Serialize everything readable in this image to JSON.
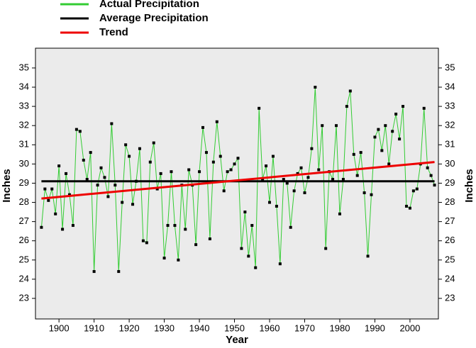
{
  "chart_data": {
    "type": "line",
    "x_label": "Year",
    "y_label": "Inches",
    "xlim": [
      1893.3,
      2008.1
    ],
    "ylim": [
      21.93,
      36.03
    ],
    "xticks": [
      1900,
      1910,
      1920,
      1930,
      1940,
      1950,
      1960,
      1970,
      1980,
      1990,
      2000
    ],
    "yticks": [
      23,
      24,
      25,
      26,
      27,
      28,
      29,
      30,
      31,
      32,
      33,
      34,
      35
    ],
    "background": "#ebebeb",
    "legend": "top-left",
    "series": [
      {
        "name": "Actual Precipitation",
        "color": "#33cc33",
        "markers": true,
        "x": [
          1895,
          1896,
          1897,
          1898,
          1899,
          1900,
          1901,
          1902,
          1903,
          1904,
          1905,
          1906,
          1907,
          1908,
          1909,
          1910,
          1911,
          1912,
          1913,
          1914,
          1915,
          1916,
          1917,
          1918,
          1919,
          1920,
          1921,
          1922,
          1923,
          1924,
          1925,
          1926,
          1927,
          1928,
          1929,
          1930,
          1931,
          1932,
          1933,
          1934,
          1935,
          1936,
          1937,
          1938,
          1939,
          1940,
          1941,
          1942,
          1943,
          1944,
          1945,
          1946,
          1947,
          1948,
          1949,
          1950,
          1951,
          1952,
          1953,
          1954,
          1955,
          1956,
          1957,
          1958,
          1959,
          1960,
          1961,
          1962,
          1963,
          1964,
          1965,
          1966,
          1967,
          1968,
          1969,
          1970,
          1971,
          1972,
          1973,
          1974,
          1975,
          1976,
          1977,
          1978,
          1979,
          1980,
          1981,
          1982,
          1983,
          1984,
          1985,
          1986,
          1987,
          1988,
          1989,
          1990,
          1991,
          1992,
          1993,
          1994,
          1995,
          1996,
          1997,
          1998,
          1999,
          2000,
          2001,
          2002,
          2003,
          2004,
          2005,
          2006,
          2007
        ],
        "values": [
          26.7,
          28.7,
          28.1,
          28.7,
          27.4,
          29.9,
          26.6,
          29.5,
          28.4,
          26.8,
          31.8,
          31.7,
          30.2,
          29.2,
          30.6,
          24.4,
          28.9,
          29.8,
          29.3,
          28.3,
          32.1,
          28.9,
          24.4,
          28.0,
          31.0,
          30.4,
          27.9,
          29.1,
          30.8,
          26.0,
          25.9,
          30.1,
          31.1,
          28.7,
          29.5,
          25.1,
          26.8,
          29.6,
          26.8,
          25.0,
          28.9,
          26.6,
          29.7,
          28.9,
          25.8,
          29.6,
          31.9,
          30.6,
          26.1,
          30.1,
          32.2,
          30.4,
          28.6,
          29.6,
          29.7,
          30.0,
          30.3,
          25.6,
          27.5,
          25.2,
          26.8,
          24.6,
          32.9,
          29.2,
          29.9,
          28.0,
          30.4,
          27.8,
          24.8,
          29.2,
          29.0,
          26.7,
          28.6,
          29.5,
          29.8,
          28.5,
          29.3,
          30.8,
          34.0,
          29.7,
          32.0,
          25.6,
          29.6,
          29.2,
          32.0,
          27.4,
          29.2,
          33.0,
          33.8,
          30.5,
          29.4,
          30.6,
          28.5,
          25.2,
          28.4,
          31.4,
          31.8,
          30.7,
          32.0,
          30.0,
          31.7,
          32.6,
          31.3,
          33.0,
          27.8,
          27.7,
          28.6,
          28.7,
          30.0,
          32.9,
          29.8,
          29.4,
          28.9
        ]
      },
      {
        "name": "Average Precipitation",
        "color": "#000000",
        "markers": false,
        "x": [
          1895,
          2007
        ],
        "values": [
          29.1,
          29.1
        ]
      },
      {
        "name": "Trend",
        "color": "#ee0000",
        "markers": false,
        "x": [
          1895,
          2007
        ],
        "values": [
          28.2,
          30.1
        ]
      }
    ]
  }
}
